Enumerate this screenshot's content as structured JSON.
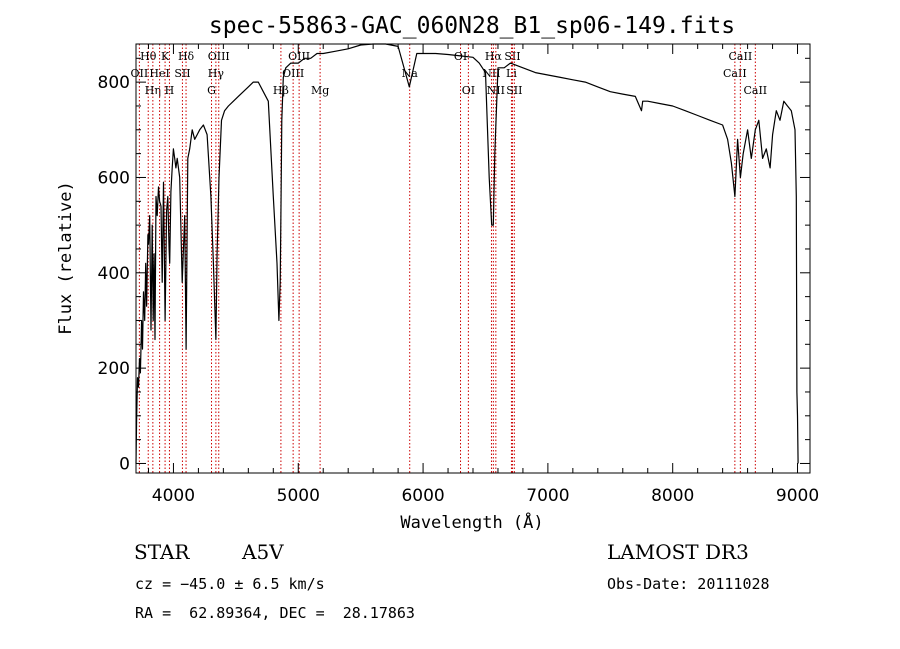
{
  "chart_data": {
    "type": "line",
    "title": "spec-55863-GAC_060N28_B1_sp06-149.fits",
    "xlabel": "Wavelength (Å)",
    "ylabel": "Flux (relative)",
    "xlim": [
      3700,
      9100
    ],
    "ylim": [
      -20,
      880
    ],
    "xticks": [
      4000,
      5000,
      6000,
      7000,
      8000,
      9000
    ],
    "yticks": [
      0,
      200,
      400,
      600,
      800
    ],
    "series": [
      {
        "name": "flux",
        "x": [
          3700,
          3705,
          3712,
          3720,
          3728,
          3735,
          3745,
          3752,
          3760,
          3770,
          3778,
          3785,
          3795,
          3800,
          3810,
          3820,
          3830,
          3838,
          3845,
          3852,
          3860,
          3870,
          3880,
          3889,
          3900,
          3910,
          3920,
          3933,
          3945,
          3955,
          3965,
          3970,
          3980,
          3990,
          4000,
          4010,
          4020,
          4030,
          4050,
          4070,
          4090,
          4101,
          4115,
          4130,
          4150,
          4170,
          4190,
          4210,
          4240,
          4270,
          4300,
          4320,
          4340,
          4350,
          4365,
          4385,
          4410,
          4440,
          4480,
          4520,
          4560,
          4600,
          4640,
          4680,
          4720,
          4760,
          4800,
          4830,
          4845,
          4855,
          4861,
          4868,
          4880,
          4900,
          4940,
          5000,
          5050,
          5100,
          5150,
          5200,
          5300,
          5400,
          5500,
          5600,
          5700,
          5800,
          5890,
          5950,
          6000,
          6100,
          6200,
          6300,
          6400,
          6450,
          6500,
          6530,
          6550,
          6563,
          6575,
          6600,
          6650,
          6700,
          6800,
          6900,
          7000,
          7100,
          7200,
          7300,
          7400,
          7500,
          7600,
          7700,
          7750,
          7760,
          7800,
          7900,
          8000,
          8100,
          8200,
          8300,
          8400,
          8440,
          8470,
          8498,
          8520,
          8542,
          8565,
          8600,
          8630,
          8662,
          8690,
          8720,
          8750,
          8780,
          8800,
          8830,
          8860,
          8890,
          8920,
          8950,
          8980,
          8990,
          8995,
          9000,
          9005
        ],
        "values": [
          0,
          90,
          180,
          160,
          220,
          190,
          300,
          240,
          360,
          300,
          420,
          330,
          480,
          460,
          520,
          280,
          500,
          300,
          440,
          260,
          560,
          520,
          580,
          550,
          540,
          380,
          590,
          300,
          530,
          560,
          450,
          420,
          570,
          620,
          660,
          640,
          620,
          640,
          600,
          380,
          520,
          240,
          640,
          660,
          700,
          680,
          690,
          700,
          710,
          690,
          560,
          420,
          260,
          440,
          600,
          720,
          740,
          750,
          760,
          770,
          780,
          790,
          800,
          800,
          780,
          760,
          560,
          420,
          300,
          380,
          520,
          720,
          810,
          830,
          840,
          840,
          850,
          850,
          860,
          860,
          865,
          870,
          878,
          880,
          880,
          875,
          790,
          860,
          860,
          860,
          858,
          855,
          852,
          840,
          820,
          600,
          500,
          500,
          650,
          830,
          830,
          840,
          830,
          820,
          815,
          810,
          805,
          800,
          790,
          780,
          775,
          770,
          740,
          760,
          760,
          755,
          750,
          740,
          730,
          720,
          710,
          680,
          630,
          560,
          680,
          600,
          650,
          700,
          640,
          700,
          720,
          640,
          660,
          620,
          690,
          740,
          720,
          760,
          750,
          740,
          700,
          560,
          150,
          100,
          0
        ]
      }
    ],
    "line_markers": [
      {
        "name": "Hθ",
        "wavelength": 3798,
        "row": 0
      },
      {
        "name": "OII",
        "wavelength": 3727,
        "row": 1
      },
      {
        "name": "Hη",
        "wavelength": 3835,
        "row": 2
      },
      {
        "name": "HeI",
        "wavelength": 3889,
        "row": 1
      },
      {
        "name": "K",
        "wavelength": 3933,
        "row": 0
      },
      {
        "name": "H",
        "wavelength": 3968,
        "row": 2
      },
      {
        "name": "SII",
        "wavelength": 4072,
        "row": 1
      },
      {
        "name": "Hδ",
        "wavelength": 4101,
        "row": 0
      },
      {
        "name": "G",
        "wavelength": 4305,
        "row": 2
      },
      {
        "name": "Hγ",
        "wavelength": 4340,
        "row": 1
      },
      {
        "name": "OIII",
        "wavelength": 4363,
        "row": 0
      },
      {
        "name": "Hβ",
        "wavelength": 4861,
        "row": 2
      },
      {
        "name": "OIII",
        "wavelength": 4959,
        "row": 1
      },
      {
        "name": "OIII",
        "wavelength": 5007,
        "row": 0
      },
      {
        "name": "Mg",
        "wavelength": 5175,
        "row": 2
      },
      {
        "name": "Na",
        "wavelength": 5893,
        "row": 1
      },
      {
        "name": "OI",
        "wavelength": 6300,
        "row": 0
      },
      {
        "name": "OI",
        "wavelength": 6363,
        "row": 2
      },
      {
        "name": "NII",
        "wavelength": 6548,
        "row": 1
      },
      {
        "name": "Hα",
        "wavelength": 6563,
        "row": 0
      },
      {
        "name": "NII",
        "wavelength": 6583,
        "row": 2
      },
      {
        "name": "Li",
        "wavelength": 6708,
        "row": 1
      },
      {
        "name": "SII",
        "wavelength": 6716,
        "row": 0
      },
      {
        "name": "SII",
        "wavelength": 6731,
        "row": 2
      },
      {
        "name": "CaII",
        "wavelength": 8498,
        "row": 1
      },
      {
        "name": "CaII",
        "wavelength": 8542,
        "row": 0
      },
      {
        "name": "CaII",
        "wavelength": 8662,
        "row": 2
      }
    ]
  },
  "info": {
    "class": "STAR",
    "subclass": "A5V",
    "survey": "LAMOST DR3",
    "cz": "cz = −45.0 ± 6.5 km/s",
    "obs_date": "Obs-Date: 20111028",
    "coords": "RA =  62.89364, DEC =  28.17863"
  }
}
